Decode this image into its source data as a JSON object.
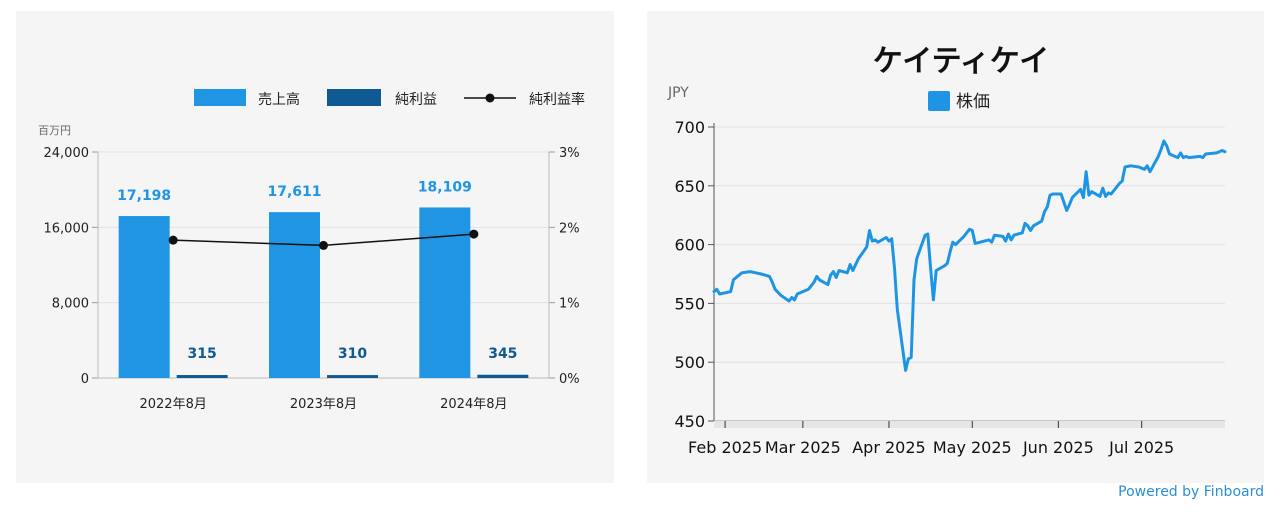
{
  "colors": {
    "revenue": "#1f95e4",
    "net_income": "#0f5a93",
    "margin_line": "#111111",
    "price_line": "#1e95e4",
    "panel_bg": "#f5f5f5",
    "grid": "#e2e2e2",
    "axis_text": "#222222",
    "muted_text": "#666666",
    "powered": "#2a8fd6"
  },
  "footer": {
    "powered_by": "Powered by Finboard"
  },
  "chart_data": [
    {
      "type": "bar",
      "title": "",
      "units_label": "百万円",
      "categories": [
        "2022年8月",
        "2023年8月",
        "2024年8月"
      ],
      "series": [
        {
          "name": "売上高",
          "values": [
            17198,
            17611,
            18109
          ],
          "labels": [
            "17,198",
            "17,611",
            "18,109"
          ]
        },
        {
          "name": "純利益",
          "values": [
            315,
            310,
            345
          ],
          "labels": [
            "315",
            "310",
            "345"
          ]
        }
      ],
      "line_series": {
        "name": "純利益率",
        "values": [
          1.83,
          1.76,
          1.91
        ],
        "axis": "right"
      },
      "left_axis": {
        "min": 0,
        "max": 24000,
        "ticks": [
          0,
          8000,
          16000,
          24000
        ],
        "tick_labels": [
          "0",
          "8,000",
          "16,000",
          "24,000"
        ]
      },
      "right_axis": {
        "min": 0,
        "max": 3,
        "ticks": [
          0,
          1,
          2,
          3
        ],
        "tick_labels": [
          "0%",
          "1%",
          "2%",
          "3%"
        ]
      },
      "legend_position": "top-right"
    },
    {
      "type": "line",
      "title": "ケイティケイ",
      "ylabel": "JPY",
      "series": [
        {
          "name": "株価"
        }
      ],
      "ylim": [
        450,
        700
      ],
      "y_ticks": [
        450,
        500,
        550,
        600,
        650,
        700
      ],
      "x_tick_labels": [
        "Feb 2025",
        "Mar 2025",
        "Apr 2025",
        "May 2025",
        "Jun 2025",
        "Jul 2025"
      ],
      "x_tick_dates": [
        "2025-02-01",
        "2025-03-01",
        "2025-04-01",
        "2025-05-01",
        "2025-06-01",
        "2025-07-01"
      ],
      "x_range": [
        "2025-01-28",
        "2025-07-31"
      ],
      "legend_position": "top-center",
      "points": [
        [
          "2025-01-28",
          560
        ],
        [
          "2025-01-29",
          562
        ],
        [
          "2025-01-30",
          558
        ],
        [
          "2025-02-03",
          560
        ],
        [
          "2025-02-04",
          570
        ],
        [
          "2025-02-05",
          572
        ],
        [
          "2025-02-07",
          576
        ],
        [
          "2025-02-10",
          577
        ],
        [
          "2025-02-12",
          576
        ],
        [
          "2025-02-14",
          575
        ],
        [
          "2025-02-17",
          573
        ],
        [
          "2025-02-18",
          568
        ],
        [
          "2025-02-19",
          562
        ],
        [
          "2025-02-21",
          557
        ],
        [
          "2025-02-24",
          552
        ],
        [
          "2025-02-25",
          555
        ],
        [
          "2025-02-26",
          553
        ],
        [
          "2025-02-27",
          558
        ],
        [
          "2025-03-03",
          562
        ],
        [
          "2025-03-05",
          568
        ],
        [
          "2025-03-06",
          573
        ],
        [
          "2025-03-07",
          570
        ],
        [
          "2025-03-10",
          566
        ],
        [
          "2025-03-11",
          574
        ],
        [
          "2025-03-12",
          577
        ],
        [
          "2025-03-13",
          572
        ],
        [
          "2025-03-14",
          578
        ],
        [
          "2025-03-17",
          576
        ],
        [
          "2025-03-18",
          583
        ],
        [
          "2025-03-19",
          578
        ],
        [
          "2025-03-21",
          588
        ],
        [
          "2025-03-24",
          598
        ],
        [
          "2025-03-25",
          612
        ],
        [
          "2025-03-26",
          603
        ],
        [
          "2025-03-27",
          604
        ],
        [
          "2025-03-28",
          602
        ],
        [
          "2025-03-31",
          606
        ],
        [
          "2025-04-01",
          603
        ],
        [
          "2025-04-02",
          605
        ],
        [
          "2025-04-03",
          580
        ],
        [
          "2025-04-04",
          545
        ],
        [
          "2025-04-07",
          493
        ],
        [
          "2025-04-08",
          503
        ],
        [
          "2025-04-09",
          504
        ],
        [
          "2025-04-10",
          570
        ],
        [
          "2025-04-11",
          588
        ],
        [
          "2025-04-14",
          608
        ],
        [
          "2025-04-15",
          609
        ],
        [
          "2025-04-16",
          580
        ],
        [
          "2025-04-17",
          553
        ],
        [
          "2025-04-18",
          578
        ],
        [
          "2025-04-21",
          582
        ],
        [
          "2025-04-22",
          584
        ],
        [
          "2025-04-23",
          594
        ],
        [
          "2025-04-24",
          602
        ],
        [
          "2025-04-25",
          600
        ],
        [
          "2025-04-28",
          607
        ],
        [
          "2025-04-30",
          613
        ],
        [
          "2025-05-01",
          612
        ],
        [
          "2025-05-02",
          601
        ],
        [
          "2025-05-07",
          604
        ],
        [
          "2025-05-08",
          602
        ],
        [
          "2025-05-09",
          608
        ],
        [
          "2025-05-12",
          607
        ],
        [
          "2025-05-13",
          603
        ],
        [
          "2025-05-14",
          609
        ],
        [
          "2025-05-15",
          604
        ],
        [
          "2025-05-16",
          608
        ],
        [
          "2025-05-19",
          610
        ],
        [
          "2025-05-20",
          618
        ],
        [
          "2025-05-21",
          616
        ],
        [
          "2025-05-22",
          612
        ],
        [
          "2025-05-23",
          616
        ],
        [
          "2025-05-26",
          620
        ],
        [
          "2025-05-27",
          628
        ],
        [
          "2025-05-28",
          632
        ],
        [
          "2025-05-29",
          642
        ],
        [
          "2025-05-30",
          643
        ],
        [
          "2025-06-02",
          643
        ],
        [
          "2025-06-03",
          636
        ],
        [
          "2025-06-04",
          629
        ],
        [
          "2025-06-05",
          634
        ],
        [
          "2025-06-06",
          640
        ],
        [
          "2025-06-09",
          647
        ],
        [
          "2025-06-10",
          640
        ],
        [
          "2025-06-11",
          662
        ],
        [
          "2025-06-12",
          642
        ],
        [
          "2025-06-13",
          645
        ],
        [
          "2025-06-16",
          641
        ],
        [
          "2025-06-17",
          648
        ],
        [
          "2025-06-18",
          641
        ],
        [
          "2025-06-19",
          644
        ],
        [
          "2025-06-20",
          643
        ],
        [
          "2025-06-23",
          652
        ],
        [
          "2025-06-24",
          654
        ],
        [
          "2025-06-25",
          666
        ],
        [
          "2025-06-27",
          667
        ],
        [
          "2025-06-30",
          666
        ],
        [
          "2025-07-01",
          665
        ],
        [
          "2025-07-02",
          664
        ],
        [
          "2025-07-03",
          667
        ],
        [
          "2025-07-04",
          662
        ],
        [
          "2025-07-07",
          675
        ],
        [
          "2025-07-08",
          681
        ],
        [
          "2025-07-09",
          688
        ],
        [
          "2025-07-10",
          684
        ],
        [
          "2025-07-11",
          677
        ],
        [
          "2025-07-14",
          674
        ],
        [
          "2025-07-15",
          678
        ],
        [
          "2025-07-16",
          674
        ],
        [
          "2025-07-17",
          675
        ],
        [
          "2025-07-18",
          674
        ],
        [
          "2025-07-22",
          675
        ],
        [
          "2025-07-23",
          674
        ],
        [
          "2025-07-24",
          677
        ],
        [
          "2025-07-28",
          678
        ],
        [
          "2025-07-30",
          680
        ],
        [
          "2025-07-31",
          679
        ]
      ]
    }
  ]
}
